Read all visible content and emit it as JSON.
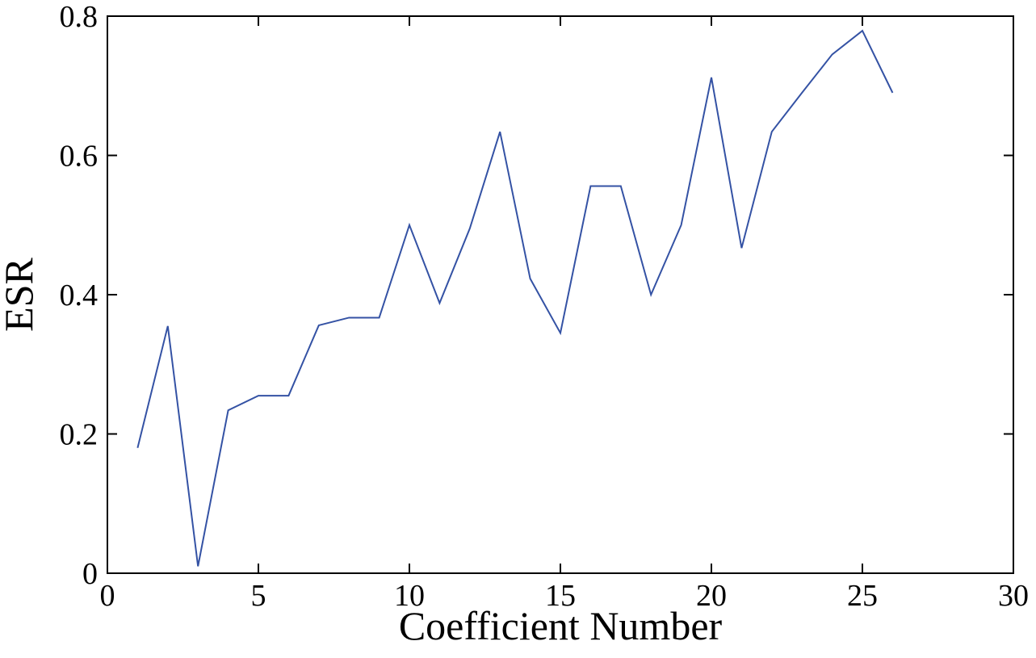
{
  "chart_data": {
    "type": "line",
    "x_label": "Coefficient Number",
    "y_label": "ESR",
    "x": [
      1,
      2,
      3,
      4,
      5,
      6,
      7,
      8,
      9,
      10,
      11,
      12,
      13,
      14,
      15,
      16,
      17,
      18,
      19,
      20,
      21,
      22,
      23,
      24,
      25,
      26
    ],
    "series": [
      {
        "color": "#3452a4",
        "values": [
          0.18,
          0.355,
          0.01,
          0.234,
          0.255,
          0.255,
          0.356,
          0.367,
          0.367,
          0.5,
          0.388,
          0.495,
          0.634,
          0.423,
          0.345,
          0.556,
          0.556,
          0.4,
          0.5,
          0.712,
          0.467,
          0.634,
          0.69,
          0.745,
          0.779,
          0.69
        ]
      }
    ],
    "xlim": [
      0,
      30
    ],
    "xticks": [
      0,
      5,
      10,
      15,
      20,
      25,
      30
    ],
    "ylim": [
      0,
      0.8
    ],
    "yticks": [
      0,
      0.2,
      0.4,
      0.6,
      0.8
    ]
  }
}
